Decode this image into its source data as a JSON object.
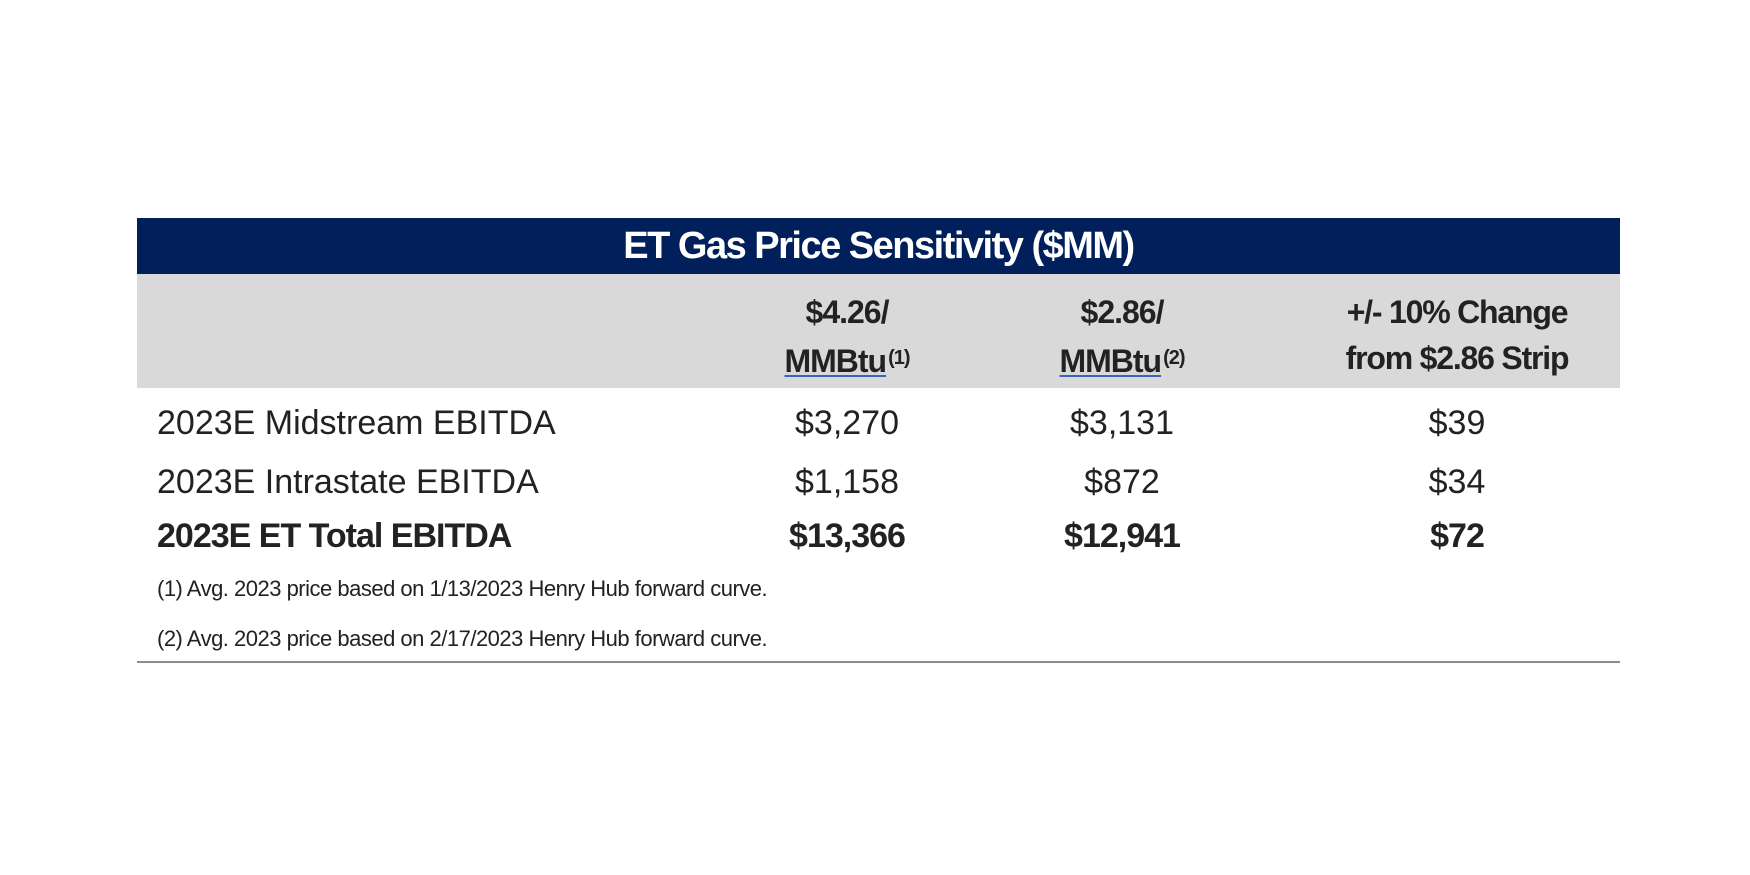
{
  "title": "ET Gas Price Sensitivity ($MM)",
  "columns": [
    {
      "line1": "$4.26/",
      "line2": "MMBtu",
      "footnote_ref": "(1)"
    },
    {
      "line1": "$2.86/",
      "line2": "MMBtu",
      "footnote_ref": "(2)"
    },
    {
      "line1": "+/- 10% Change",
      "line2": "from $2.86 Strip",
      "footnote_ref": ""
    }
  ],
  "rows": [
    {
      "label": "2023E Midstream EBITDA",
      "values": [
        "$3,270",
        "$3,131",
        "$39"
      ],
      "bold": false
    },
    {
      "label": "2023E Intrastate EBITDA",
      "values": [
        "$1,158",
        "$872",
        "$34"
      ],
      "bold": false
    },
    {
      "label": "2023E ET Total EBITDA",
      "values": [
        "$13,366",
        "$12,941",
        "$72"
      ],
      "bold": true
    }
  ],
  "footnotes": [
    "(1) Avg. 2023 price based on 1/13/2023 Henry Hub forward curve.",
    "(2) Avg. 2023 price based on 2/17/2023 Henry Hub forward curve."
  ],
  "colors": {
    "title_bg": "#001f5b",
    "header_bg": "#d9d9d9",
    "underline": "#3a63c4"
  }
}
